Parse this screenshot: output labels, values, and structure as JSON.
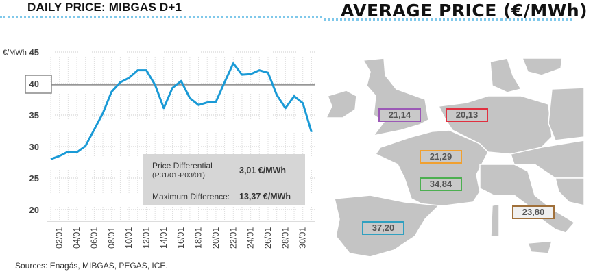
{
  "header": {
    "left_title": "DAILY PRICE: MIBGAS D+1",
    "right_title": "AVERAGE PRICE (€/MWh)"
  },
  "chart_data": {
    "type": "line",
    "title": "DAILY PRICE: MIBGAS D+1",
    "ylabel": "€/MWh",
    "ylim": [
      18,
      45
    ],
    "yticks": [
      20,
      25,
      30,
      35,
      40,
      45
    ],
    "highlighted_ytick": 40,
    "grid": true,
    "x": [
      "01/01",
      "02/01",
      "03/01",
      "04/01",
      "05/01",
      "06/01",
      "07/01",
      "08/01",
      "09/01",
      "10/01",
      "11/01",
      "12/01",
      "13/01",
      "14/01",
      "15/01",
      "16/01",
      "17/01",
      "18/01",
      "19/01",
      "20/01",
      "21/01",
      "22/01",
      "23/01",
      "24/01",
      "25/01",
      "26/01",
      "27/01",
      "28/01",
      "29/01",
      "30/01",
      "31/01"
    ],
    "xtick_labels": [
      "02/01",
      "04/01",
      "06/01",
      "08/01",
      "10/01",
      "12/01",
      "14/01",
      "16/01",
      "18/01",
      "20/01",
      "22/01",
      "24/01",
      "26/01",
      "28/01",
      "30/01"
    ],
    "series": [
      {
        "values": [
          28.0,
          28.5,
          29.2,
          29.1,
          30.1,
          32.7,
          35.3,
          38.7,
          40.2,
          40.9,
          42.1,
          42.1,
          39.8,
          36.1,
          39.3,
          40.4,
          37.7,
          36.6,
          37.0,
          37.1,
          40.2,
          43.2,
          41.4,
          41.5,
          42.1,
          41.7,
          38.2,
          36.1,
          38.0,
          36.9,
          32.3
        ],
        "color": "#1a9ad6"
      }
    ],
    "reference_line": {
      "value": 39.8,
      "color": "#888888"
    }
  },
  "info_box": {
    "price_diff_label": "Price Differential",
    "price_diff_sub": "(P31/01-P03/01):",
    "price_diff_value": "3,01 €/MWh",
    "max_diff_label": "Maximum Difference:",
    "max_diff_value": "13,37 €/MWh"
  },
  "sources": "Sources: Enagás, MIBGAS, PEGAS, ICE.",
  "map": {
    "labels": [
      {
        "region": "UK",
        "value": "21,14",
        "color": "#9b59b6"
      },
      {
        "region": "Netherlands",
        "value": "20,13",
        "color": "#e03040"
      },
      {
        "region": "France North",
        "value": "21,29",
        "color": "#f0a030"
      },
      {
        "region": "France South",
        "value": "34,84",
        "color": "#4caf50"
      },
      {
        "region": "Spain",
        "value": "37,20",
        "color": "#30a0c0"
      },
      {
        "region": "Italy",
        "value": "23,80",
        "color": "#a0703a"
      }
    ]
  }
}
